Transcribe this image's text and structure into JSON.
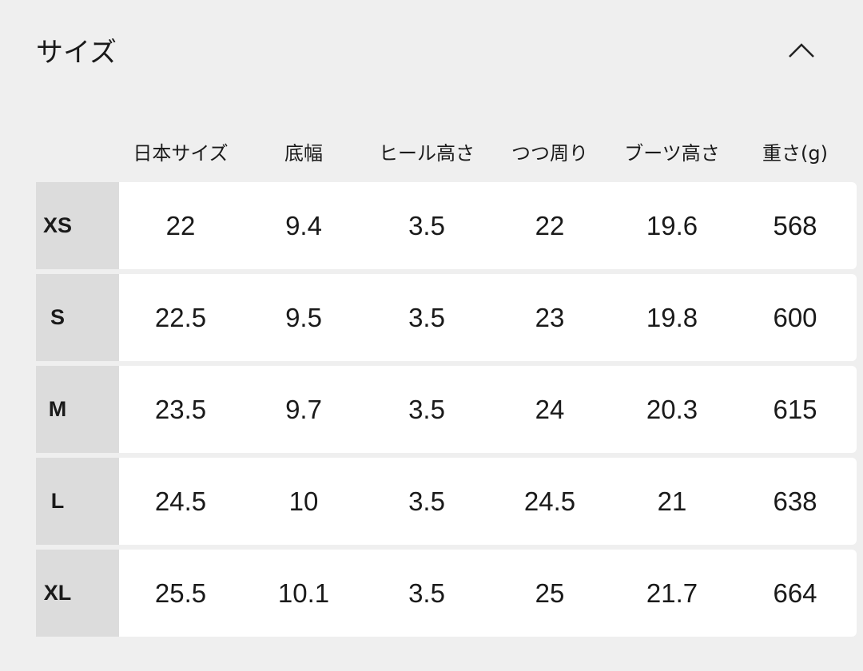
{
  "section": {
    "title": "サイズ",
    "toggle_icon": "chevron-up-icon"
  },
  "table": {
    "headers": [
      "日本サイズ",
      "底幅",
      "ヒール高さ",
      "つつ周り",
      "ブーツ高さ",
      "重さ(g)"
    ],
    "rows": [
      {
        "size": "XS",
        "values": [
          "22",
          "9.4",
          "3.5",
          "22",
          "19.6",
          "568"
        ]
      },
      {
        "size": "S",
        "values": [
          "22.5",
          "9.5",
          "3.5",
          "23",
          "19.8",
          "600"
        ]
      },
      {
        "size": "M",
        "values": [
          "23.5",
          "9.7",
          "3.5",
          "24",
          "20.3",
          "615"
        ]
      },
      {
        "size": "L",
        "values": [
          "24.5",
          "10",
          "3.5",
          "24.5",
          "21",
          "638"
        ]
      },
      {
        "size": "XL",
        "values": [
          "25.5",
          "10.1",
          "3.5",
          "25",
          "21.7",
          "664"
        ]
      }
    ]
  }
}
